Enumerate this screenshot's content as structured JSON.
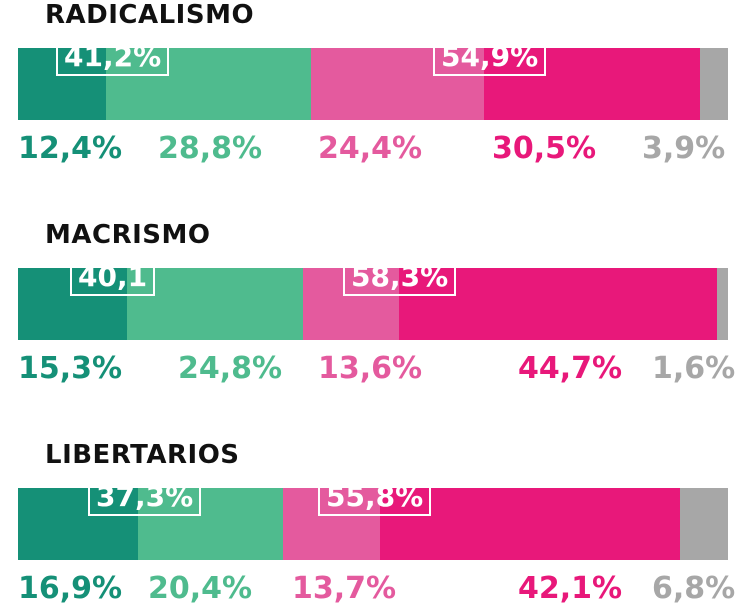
{
  "chart_data": {
    "type": "bar",
    "stacked": true,
    "orientation": "horizontal",
    "colors": {
      "dark_green": "#159077",
      "light_green": "#4fbb8e",
      "light_pink": "#e45a9e",
      "dark_pink": "#e8187a",
      "gray": "#a7a7a7"
    },
    "groups": [
      {
        "title": "RADICALISMO",
        "values": [
          12.4,
          28.8,
          24.4,
          30.5,
          3.9
        ],
        "labels": [
          "12,4%",
          "28,8%",
          "24,4%",
          "30,5%",
          "3,9%"
        ],
        "green_total": "41,2%",
        "pink_total": "54,9%"
      },
      {
        "title": "MACRISMO",
        "values": [
          15.3,
          24.8,
          13.6,
          44.7,
          1.6
        ],
        "labels": [
          "15,3%",
          "24,8%",
          "13,6%",
          "44,7%",
          "1,6%"
        ],
        "green_total": "40,1",
        "pink_total": "58,3%"
      },
      {
        "title": "LIBERTARIOS",
        "values": [
          16.9,
          20.4,
          13.7,
          42.1,
          6.8
        ],
        "labels": [
          "16,9%",
          "20,4%",
          "13,7%",
          "42,1%",
          "6,8%"
        ],
        "green_total": "37,3%",
        "pink_total": "55,8%"
      }
    ]
  }
}
